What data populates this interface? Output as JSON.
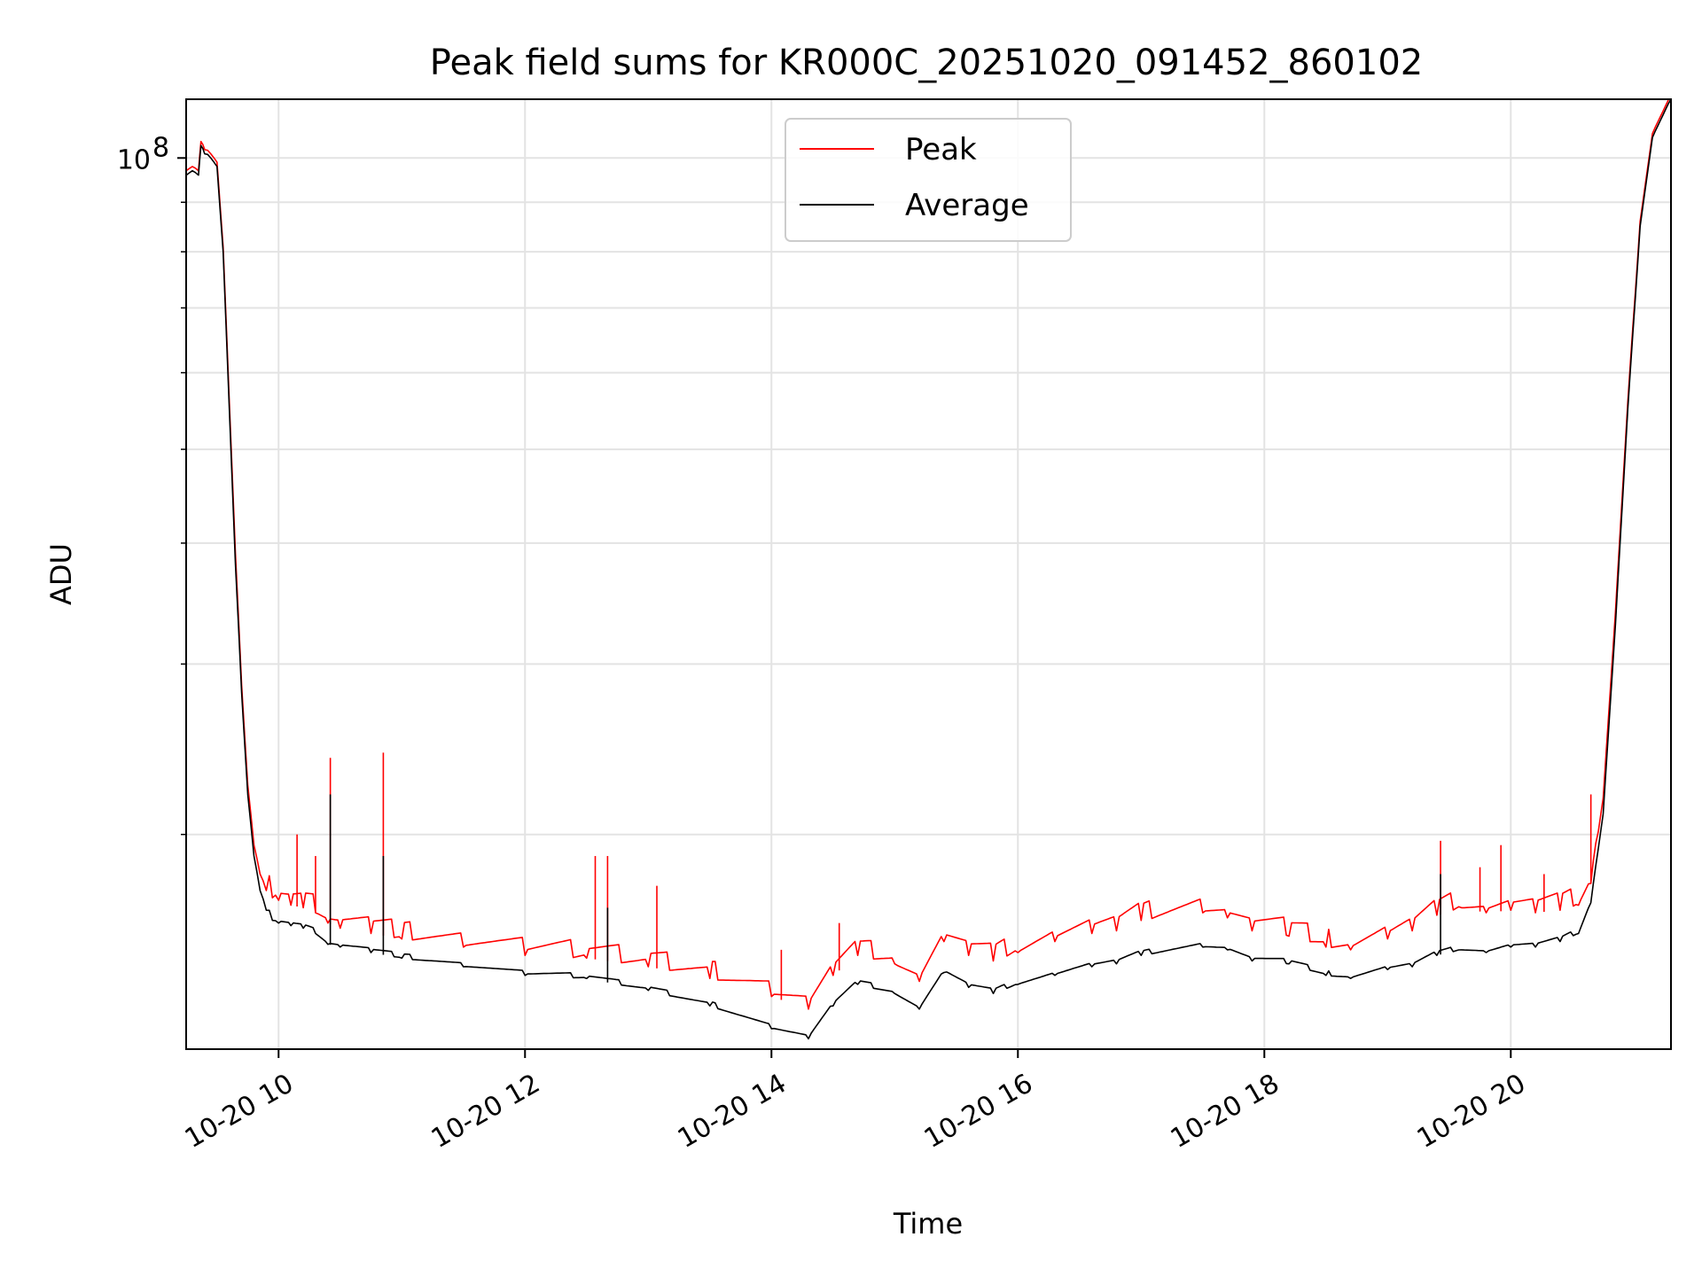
{
  "chart_data": {
    "type": "line",
    "title": "Peak field sums for KR000C_20251020_091452_860102",
    "xlabel": "Time",
    "ylabel": "ADU",
    "yscale": "log",
    "ylim": [
      12000000,
      115000000
    ],
    "xlim_hours": [
      9.25,
      21.3
    ],
    "grid": true,
    "x_ticks": [
      {
        "hour": 10,
        "label": "10-20 10"
      },
      {
        "hour": 12,
        "label": "10-20 12"
      },
      {
        "hour": 14,
        "label": "10-20 14"
      },
      {
        "hour": 16,
        "label": "10-20 16"
      },
      {
        "hour": 18,
        "label": "10-20 18"
      },
      {
        "hour": 20,
        "label": "10-20 20"
      }
    ],
    "y_tick_label": {
      "base": "10",
      "exponent": "8",
      "value": 100000000
    },
    "y_minor_values": [
      20000000,
      30000000,
      40000000,
      50000000,
      60000000,
      70000000,
      80000000,
      90000000
    ],
    "legend": {
      "position": "upper-center",
      "entries": [
        {
          "label": "Peak",
          "color": "#ff0000"
        },
        {
          "label": "Average",
          "color": "#000000"
        }
      ]
    },
    "series": [
      {
        "name": "Average",
        "color": "#000000",
        "x_hours": [
          9.25,
          9.3,
          9.35,
          9.37,
          9.4,
          9.45,
          9.5,
          9.55,
          9.6,
          9.65,
          9.7,
          9.75,
          9.8,
          9.85,
          9.9,
          9.95,
          10.0,
          10.1,
          10.2,
          10.3,
          10.4,
          10.5,
          10.75,
          11.0,
          11.5,
          12.0,
          12.5,
          13.0,
          13.5,
          14.0,
          14.3,
          14.5,
          14.7,
          15.0,
          15.2,
          15.4,
          15.6,
          15.8,
          16.0,
          16.3,
          16.6,
          16.8,
          17.0,
          17.5,
          17.7,
          17.9,
          18.2,
          18.5,
          18.7,
          19.0,
          19.2,
          19.4,
          19.6,
          19.8,
          20.0,
          20.2,
          20.4,
          20.55,
          20.65,
          20.75,
          20.85,
          20.95,
          21.05,
          21.15,
          21.3
        ],
        "y": [
          96000000,
          97000000,
          96000000,
          103000000,
          101000000,
          100000000,
          98000000,
          80000000,
          55000000,
          38000000,
          28000000,
          22000000,
          19000000,
          17500000,
          16700000,
          16300000,
          16200000,
          16100000,
          16000000,
          15800000,
          15400000,
          15300000,
          15100000,
          14900000,
          14600000,
          14300000,
          14200000,
          13800000,
          13300000,
          12600000,
          12300000,
          13300000,
          14000000,
          13700000,
          13200000,
          14400000,
          13900000,
          13700000,
          14000000,
          14300000,
          14600000,
          14700000,
          15000000,
          15300000,
          15200000,
          14800000,
          14700000,
          14300000,
          14200000,
          14500000,
          14600000,
          15000000,
          15200000,
          15100000,
          15300000,
          15300000,
          15500000,
          15800000,
          17000000,
          21000000,
          33000000,
          55000000,
          85000000,
          105000000,
          115000000
        ]
      },
      {
        "name": "Peak",
        "color": "#ff0000",
        "x_hours": [
          9.25,
          9.3,
          9.35,
          9.37,
          9.4,
          9.45,
          9.5,
          9.55,
          9.6,
          9.65,
          9.7,
          9.75,
          9.8,
          9.85,
          9.9,
          9.95,
          10.0,
          10.1,
          10.2,
          10.3,
          10.4,
          10.5,
          10.75,
          11.0,
          11.5,
          12.0,
          12.5,
          13.0,
          13.5,
          14.0,
          14.3,
          14.5,
          14.7,
          15.0,
          15.2,
          15.4,
          15.6,
          15.8,
          16.0,
          16.3,
          16.6,
          16.8,
          17.0,
          17.5,
          17.7,
          17.9,
          18.2,
          18.5,
          18.7,
          19.0,
          19.2,
          19.4,
          19.6,
          19.8,
          20.0,
          20.2,
          20.4,
          20.55,
          20.65,
          20.75,
          20.85,
          20.95,
          21.05,
          21.15,
          21.3
        ],
        "y": [
          97000000,
          98000000,
          97000000,
          104000000,
          102000000,
          101000000,
          99000000,
          81000000,
          56000000,
          39000000,
          28500000,
          22500000,
          19500000,
          18200000,
          17500000,
          17200000,
          17100000,
          16900000,
          16800000,
          16600000,
          16200000,
          16000000,
          15800000,
          15600000,
          15300000,
          15000000,
          14900000,
          14600000,
          14200000,
          13600000,
          13200000,
          14300000,
          15000000,
          14700000,
          14100000,
          15500000,
          15000000,
          14800000,
          15100000,
          15500000,
          15800000,
          15900000,
          16300000,
          16600000,
          16400000,
          15900000,
          15700000,
          15300000,
          15200000,
          15600000,
          15900000,
          16500000,
          16800000,
          16600000,
          16700000,
          16600000,
          16700000,
          16900000,
          17800000,
          21800000,
          34000000,
          56000000,
          86000000,
          106000000,
          116000000
        ]
      }
    ],
    "spikes": [
      {
        "name": "Peak",
        "x_hours": 10.15,
        "y": 20000000
      },
      {
        "name": "Peak",
        "x_hours": 10.3,
        "y": 19000000
      },
      {
        "name": "Peak",
        "x_hours": 10.42,
        "y": 24000000
      },
      {
        "name": "Peak",
        "x_hours": 10.85,
        "y": 24300000
      },
      {
        "name": "Peak",
        "x_hours": 12.57,
        "y": 19000000
      },
      {
        "name": "Peak",
        "x_hours": 12.67,
        "y": 19000000
      },
      {
        "name": "Peak",
        "x_hours": 13.07,
        "y": 17700000
      },
      {
        "name": "Peak",
        "x_hours": 14.08,
        "y": 15200000
      },
      {
        "name": "Peak",
        "x_hours": 14.55,
        "y": 16200000
      },
      {
        "name": "Peak",
        "x_hours": 19.43,
        "y": 19700000
      },
      {
        "name": "Peak",
        "x_hours": 19.75,
        "y": 18500000
      },
      {
        "name": "Peak",
        "x_hours": 19.92,
        "y": 19500000
      },
      {
        "name": "Peak",
        "x_hours": 20.27,
        "y": 18200000
      },
      {
        "name": "Peak",
        "x_hours": 20.65,
        "y": 22000000
      },
      {
        "name": "Average",
        "x_hours": 10.42,
        "y": 22000000
      },
      {
        "name": "Average",
        "x_hours": 10.85,
        "y": 19000000
      },
      {
        "name": "Average",
        "x_hours": 12.67,
        "y": 16800000
      },
      {
        "name": "Average",
        "x_hours": 19.43,
        "y": 18200000
      }
    ]
  }
}
